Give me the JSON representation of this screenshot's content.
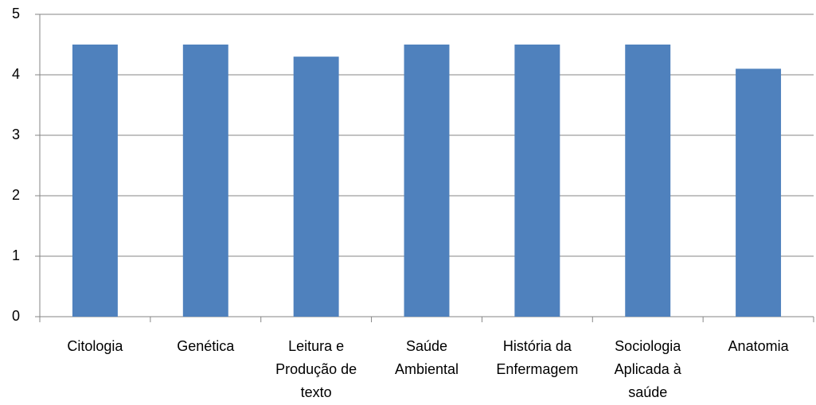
{
  "chart_data": {
    "type": "bar",
    "categories": [
      [
        "Citologia"
      ],
      [
        "Genética"
      ],
      [
        "Leitura e",
        "Produção de",
        "texto"
      ],
      [
        "Saúde",
        "Ambiental"
      ],
      [
        "História da",
        "Enfermagem"
      ],
      [
        "Sociologia",
        "Aplicada à",
        "saúde"
      ],
      [
        "Anatomia"
      ]
    ],
    "values": [
      4.5,
      4.5,
      4.3,
      4.5,
      4.5,
      4.5,
      4.1
    ],
    "color": "#4f81bd",
    "ylim": [
      0,
      5
    ],
    "yticks": [
      0,
      1,
      2,
      3,
      4,
      5
    ],
    "grid": true
  }
}
